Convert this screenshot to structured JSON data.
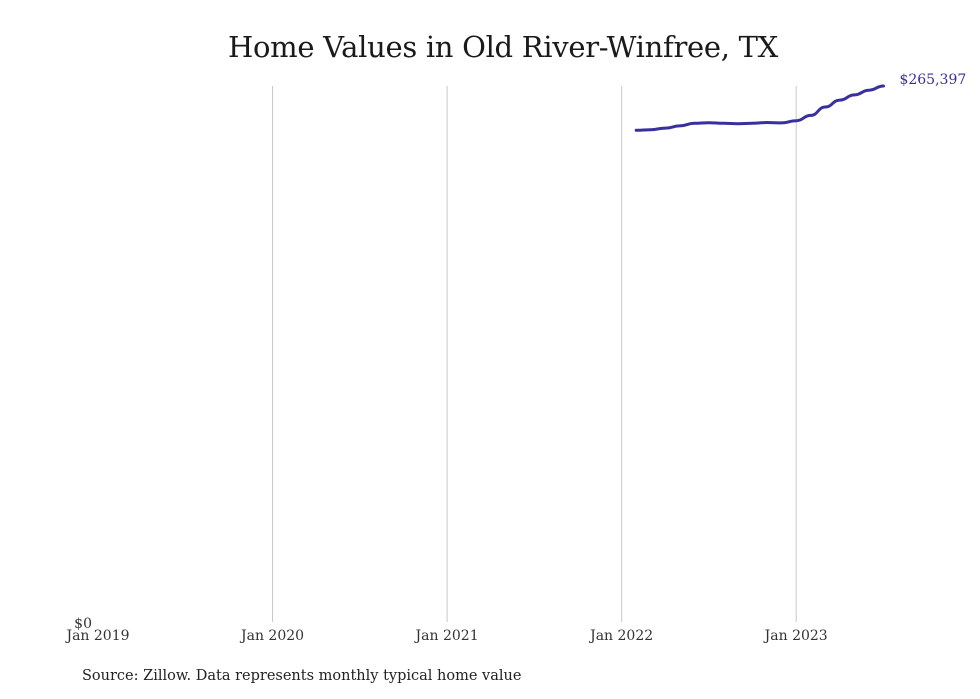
{
  "chart_data": {
    "type": "line",
    "title": "Home Values in Old River-Winfree, TX",
    "xlabel": "",
    "ylabel": "",
    "x_ticks": [
      "Jan 2019",
      "Jan 2020",
      "Jan 2021",
      "Jan 2022",
      "Jan 2023"
    ],
    "y_ticks": [
      "$0"
    ],
    "xlim": [
      "2019-01",
      "2023-08"
    ],
    "ylim": [
      0,
      265397
    ],
    "grid": "vertical",
    "color": "#3a2f9e",
    "end_label": "$265,397",
    "series": [
      {
        "x": [
          "2022-02",
          "2022-03",
          "2022-04",
          "2022-05",
          "2022-06",
          "2022-07",
          "2022-08",
          "2022-09",
          "2022-10",
          "2022-11",
          "2022-12",
          "2023-01",
          "2023-02",
          "2023-03",
          "2023-04",
          "2023-05",
          "2023-06",
          "2023-07"
        ],
        "values": [
          243400,
          243700,
          244500,
          245600,
          246900,
          247200,
          246900,
          246700,
          246900,
          247300,
          247100,
          248200,
          250800,
          255000,
          258400,
          261000,
          263300,
          265397
        ]
      }
    ]
  },
  "footer": {
    "source": "Source: Zillow. Data represents monthly typical home value"
  }
}
